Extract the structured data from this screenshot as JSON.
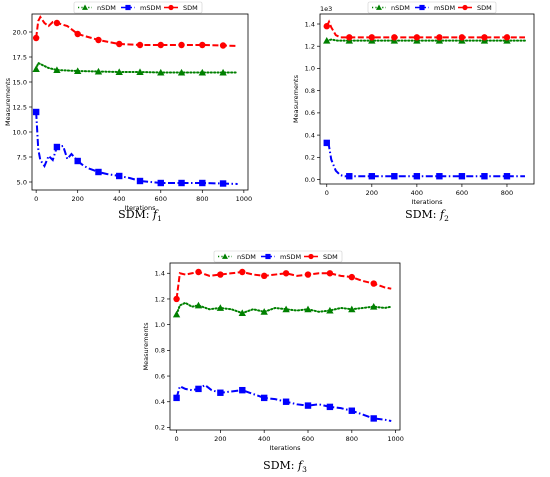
{
  "legend": {
    "items": [
      "nSDM",
      "mSDM",
      "SDM"
    ],
    "colors": {
      "nSDM": "#008000",
      "mSDM": "#0000ff",
      "SDM": "#ff0000"
    },
    "markers": {
      "nSDM": "triangle",
      "mSDM": "square",
      "SDM": "circle"
    },
    "placement": "top-center"
  },
  "chart_data": [
    {
      "type": "line",
      "caption": "SDM: f1",
      "caption_prefix": "SDM: ",
      "caption_func": "f",
      "caption_sub": "1",
      "xlabel": "Iterations",
      "ylabel": "Measurements",
      "multiplier": "",
      "xlim": [
        -20,
        1020
      ],
      "ylim": [
        4.2,
        21.8
      ],
      "xticks": [
        0,
        200,
        400,
        600,
        800,
        1000
      ],
      "yticks": [
        5.0,
        7.5,
        10.0,
        12.5,
        15.0,
        17.5,
        20.0
      ],
      "ytick_labels": [
        "5.0",
        "7.5",
        "10.0",
        "12.5",
        "15.0",
        "17.5",
        "20.0"
      ],
      "grid": false,
      "series": [
        {
          "name": "nSDM",
          "style": "dotted",
          "x": [
            0,
            10,
            30,
            60,
            100,
            150,
            200,
            300,
            400,
            500,
            600,
            700,
            800,
            900,
            970
          ],
          "y": [
            16.3,
            16.9,
            16.7,
            16.4,
            16.2,
            16.15,
            16.1,
            16.05,
            16.0,
            16.0,
            15.95,
            15.95,
            15.95,
            15.95,
            15.95
          ],
          "markers_x": [
            0,
            100,
            200,
            300,
            400,
            500,
            600,
            700,
            800,
            900
          ]
        },
        {
          "name": "mSDM",
          "style": "dashdot",
          "x": [
            0,
            10,
            20,
            40,
            60,
            80,
            100,
            130,
            150,
            170,
            200,
            230,
            260,
            300,
            340,
            400,
            450,
            500,
            550,
            600,
            700,
            800,
            900,
            970
          ],
          "y": [
            12.0,
            8.3,
            7.2,
            6.6,
            7.6,
            7.2,
            8.5,
            8.6,
            7.3,
            7.8,
            7.1,
            6.6,
            6.3,
            6.0,
            5.8,
            5.6,
            5.4,
            5.1,
            5.0,
            4.9,
            4.9,
            4.9,
            4.85,
            4.8
          ],
          "markers_x": [
            0,
            100,
            200,
            300,
            400,
            500,
            600,
            700,
            800,
            900
          ]
        },
        {
          "name": "SDM",
          "style": "dashed",
          "x": [
            0,
            10,
            20,
            40,
            60,
            80,
            100,
            150,
            200,
            300,
            400,
            500,
            600,
            700,
            800,
            900,
            970
          ],
          "y": [
            19.4,
            21.1,
            21.5,
            20.9,
            20.6,
            21.0,
            20.9,
            20.6,
            19.8,
            19.2,
            18.8,
            18.7,
            18.7,
            18.7,
            18.7,
            18.65,
            18.6
          ],
          "markers_x": [
            0,
            100,
            200,
            300,
            400,
            500,
            600,
            700,
            800,
            900
          ]
        }
      ]
    },
    {
      "type": "line",
      "caption": "SDM: f2",
      "caption_prefix": "SDM: ",
      "caption_func": "f",
      "caption_sub": "2",
      "xlabel": "Iterations",
      "ylabel": "Measurements",
      "multiplier": "1e3",
      "xlim": [
        -30,
        920
      ],
      "ylim": [
        -0.04,
        1.49
      ],
      "xticks": [
        0,
        200,
        400,
        600,
        800
      ],
      "yticks": [
        0.0,
        0.2,
        0.4,
        0.6,
        0.8,
        1.0,
        1.2,
        1.4
      ],
      "ytick_labels": [
        "0.0",
        "0.2",
        "0.4",
        "0.6",
        "0.8",
        "1.0",
        "1.2",
        "1.4"
      ],
      "grid": false,
      "series": [
        {
          "name": "nSDM",
          "style": "dotted",
          "x": [
            0,
            20,
            50,
            100,
            200,
            300,
            400,
            500,
            600,
            700,
            800,
            880
          ],
          "y": [
            1.25,
            1.26,
            1.25,
            1.25,
            1.25,
            1.25,
            1.25,
            1.25,
            1.25,
            1.25,
            1.25,
            1.25
          ],
          "markers_x": [
            0,
            100,
            200,
            300,
            400,
            500,
            600,
            700,
            800
          ]
        },
        {
          "name": "mSDM",
          "style": "dashdot",
          "x": [
            0,
            10,
            20,
            40,
            60,
            80,
            100,
            200,
            300,
            400,
            500,
            600,
            700,
            800,
            880
          ],
          "y": [
            0.33,
            0.3,
            0.18,
            0.08,
            0.04,
            0.03,
            0.03,
            0.03,
            0.03,
            0.03,
            0.03,
            0.03,
            0.03,
            0.03,
            0.03
          ],
          "markers_x": [
            0,
            100,
            200,
            300,
            400,
            500,
            600,
            700,
            800
          ]
        },
        {
          "name": "SDM",
          "style": "dashed",
          "x": [
            0,
            10,
            20,
            40,
            60,
            100,
            200,
            300,
            400,
            500,
            600,
            700,
            800,
            880
          ],
          "y": [
            1.38,
            1.42,
            1.37,
            1.3,
            1.28,
            1.28,
            1.28,
            1.28,
            1.28,
            1.28,
            1.28,
            1.28,
            1.28,
            1.28
          ],
          "markers_x": [
            0,
            100,
            200,
            300,
            400,
            500,
            600,
            700,
            800
          ]
        }
      ]
    },
    {
      "type": "line",
      "caption": "SDM: f3",
      "caption_prefix": "SDM: ",
      "caption_func": "f",
      "caption_sub": "3",
      "xlabel": "Iterations",
      "ylabel": "Measurements",
      "multiplier": "",
      "xlim": [
        -30,
        1020
      ],
      "ylim": [
        0.18,
        1.48
      ],
      "xticks": [
        0,
        200,
        400,
        600,
        800,
        1000
      ],
      "yticks": [
        0.2,
        0.4,
        0.6,
        0.8,
        1.0,
        1.2,
        1.4
      ],
      "ytick_labels": [
        "0.2",
        "0.4",
        "0.6",
        "0.8",
        "1.0",
        "1.2",
        "1.4"
      ],
      "grid": false,
      "series": [
        {
          "name": "nSDM",
          "style": "dotted",
          "x": [
            0,
            15,
            40,
            70,
            100,
            150,
            200,
            250,
            300,
            350,
            400,
            450,
            500,
            550,
            600,
            650,
            700,
            750,
            800,
            850,
            900,
            950,
            980
          ],
          "y": [
            1.08,
            1.15,
            1.17,
            1.14,
            1.15,
            1.12,
            1.13,
            1.12,
            1.09,
            1.12,
            1.1,
            1.13,
            1.12,
            1.11,
            1.12,
            1.1,
            1.11,
            1.13,
            1.12,
            1.13,
            1.14,
            1.13,
            1.14
          ],
          "markers_x": [
            0,
            100,
            200,
            300,
            400,
            500,
            600,
            700,
            800,
            900
          ]
        },
        {
          "name": "mSDM",
          "style": "dashdot",
          "x": [
            0,
            15,
            40,
            70,
            100,
            130,
            160,
            200,
            250,
            300,
            350,
            400,
            450,
            500,
            550,
            600,
            650,
            700,
            750,
            800,
            850,
            900,
            950,
            980
          ],
          "y": [
            0.43,
            0.52,
            0.5,
            0.49,
            0.5,
            0.53,
            0.49,
            0.47,
            0.48,
            0.49,
            0.46,
            0.43,
            0.42,
            0.4,
            0.38,
            0.37,
            0.38,
            0.36,
            0.35,
            0.33,
            0.3,
            0.27,
            0.26,
            0.25
          ],
          "markers_x": [
            0,
            100,
            200,
            300,
            400,
            500,
            600,
            700,
            800,
            900
          ]
        },
        {
          "name": "SDM",
          "style": "dashed",
          "x": [
            0,
            15,
            40,
            70,
            100,
            150,
            200,
            250,
            300,
            350,
            400,
            450,
            500,
            550,
            600,
            650,
            700,
            750,
            800,
            850,
            900,
            950,
            980
          ],
          "y": [
            1.2,
            1.4,
            1.39,
            1.4,
            1.41,
            1.38,
            1.39,
            1.4,
            1.41,
            1.39,
            1.38,
            1.39,
            1.4,
            1.38,
            1.39,
            1.4,
            1.4,
            1.38,
            1.37,
            1.34,
            1.32,
            1.29,
            1.28
          ],
          "markers_x": [
            0,
            100,
            200,
            300,
            400,
            500,
            600,
            700,
            800,
            900
          ]
        }
      ]
    }
  ]
}
